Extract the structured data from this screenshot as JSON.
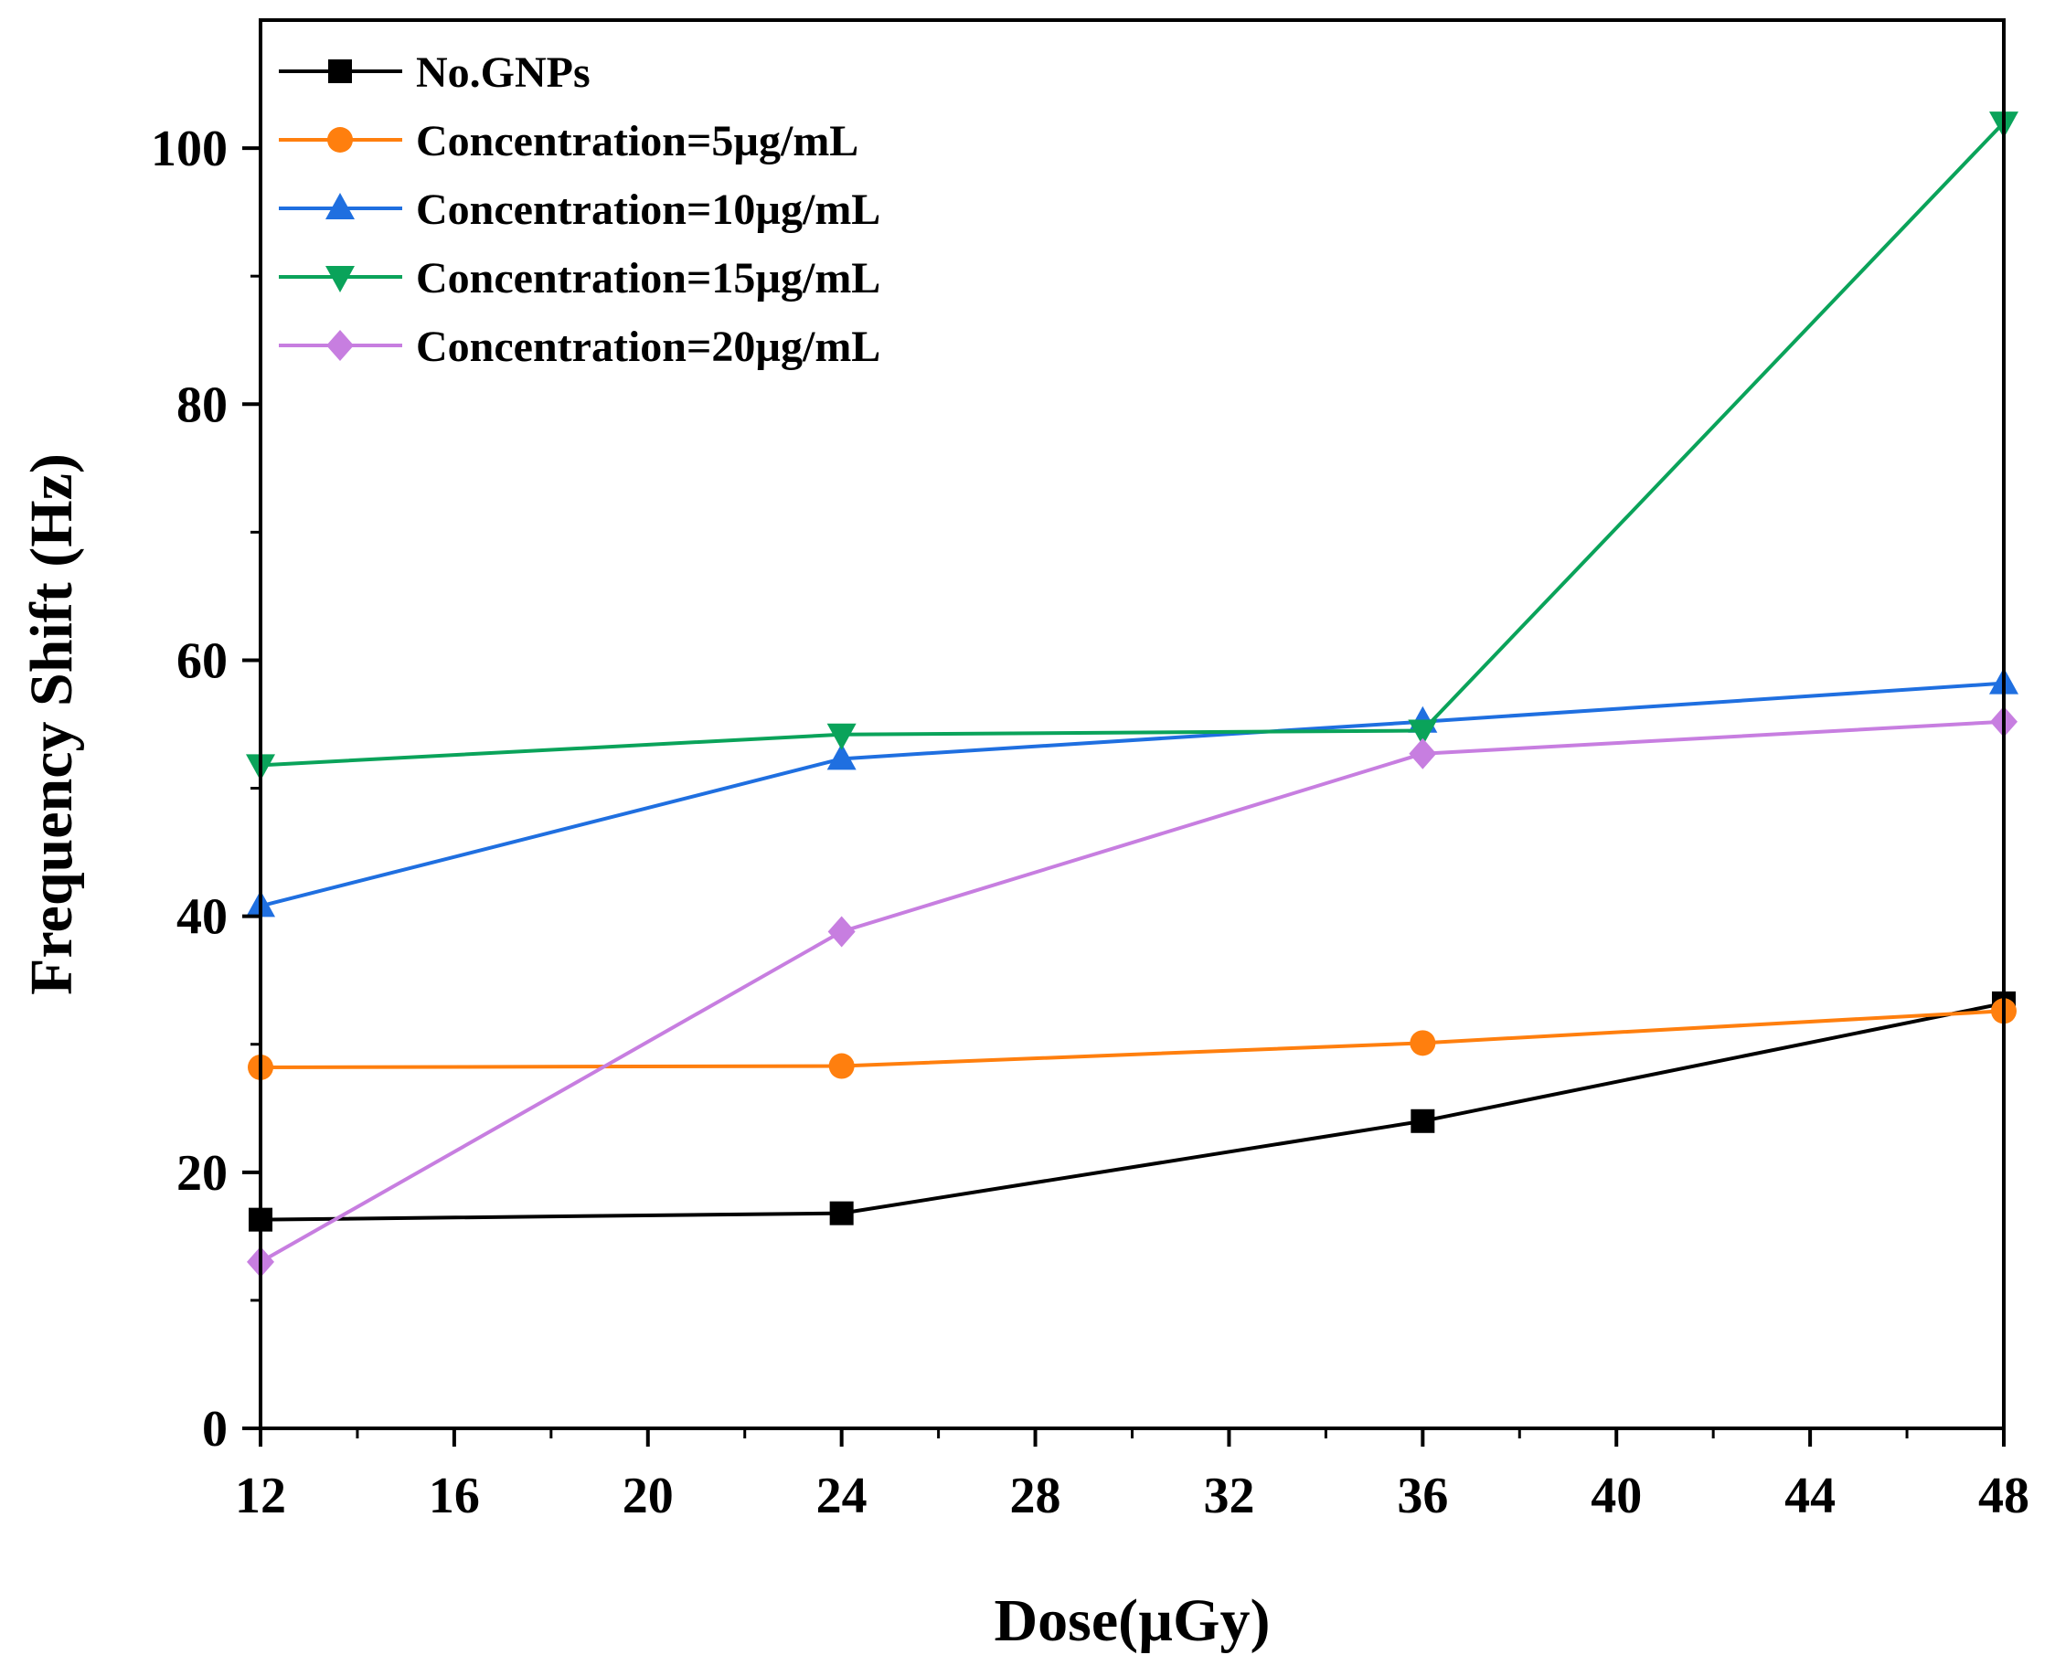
{
  "chart_data": {
    "type": "line",
    "title": "",
    "xlabel": "Dose(µGy)",
    "ylabel": "Frequency Shift (Hz)",
    "xlim": [
      12,
      48
    ],
    "ylim": [
      0,
      110
    ],
    "x_ticks": [
      12,
      16,
      20,
      24,
      28,
      32,
      36,
      40,
      44,
      48
    ],
    "x_tick_labels": [
      "12",
      "16",
      "20",
      "24",
      "28",
      "32",
      "36",
      "40",
      "44",
      "48"
    ],
    "y_ticks": [
      0,
      20,
      40,
      60,
      80,
      100
    ],
    "y_tick_labels": [
      "0",
      "20",
      "40",
      "60",
      "80",
      "100"
    ],
    "grid": false,
    "legend_position": "top-left",
    "x": [
      12,
      24,
      36,
      48
    ],
    "series": [
      {
        "name": "No.GNPs",
        "values": [
          16.3,
          16.8,
          24.0,
          33.2
        ],
        "color": "#000000",
        "marker": "square"
      },
      {
        "name": "Concentration=5µg/mL",
        "values": [
          28.2,
          28.3,
          30.1,
          32.6
        ],
        "color": "#ff7f0e",
        "marker": "circle"
      },
      {
        "name": "Concentration=10µg/mL",
        "values": [
          40.8,
          52.3,
          55.2,
          58.2
        ],
        "color": "#1f6fe0",
        "marker": "triangle-up"
      },
      {
        "name": "Concentration=15µg/mL",
        "values": [
          51.8,
          54.2,
          54.5,
          102.0
        ],
        "color": "#0aa35a",
        "marker": "triangle-down"
      },
      {
        "name": "Concentration=20µg/mL",
        "values": [
          13.0,
          38.8,
          52.7,
          55.2
        ],
        "color": "#c77ee0",
        "marker": "diamond"
      }
    ]
  }
}
